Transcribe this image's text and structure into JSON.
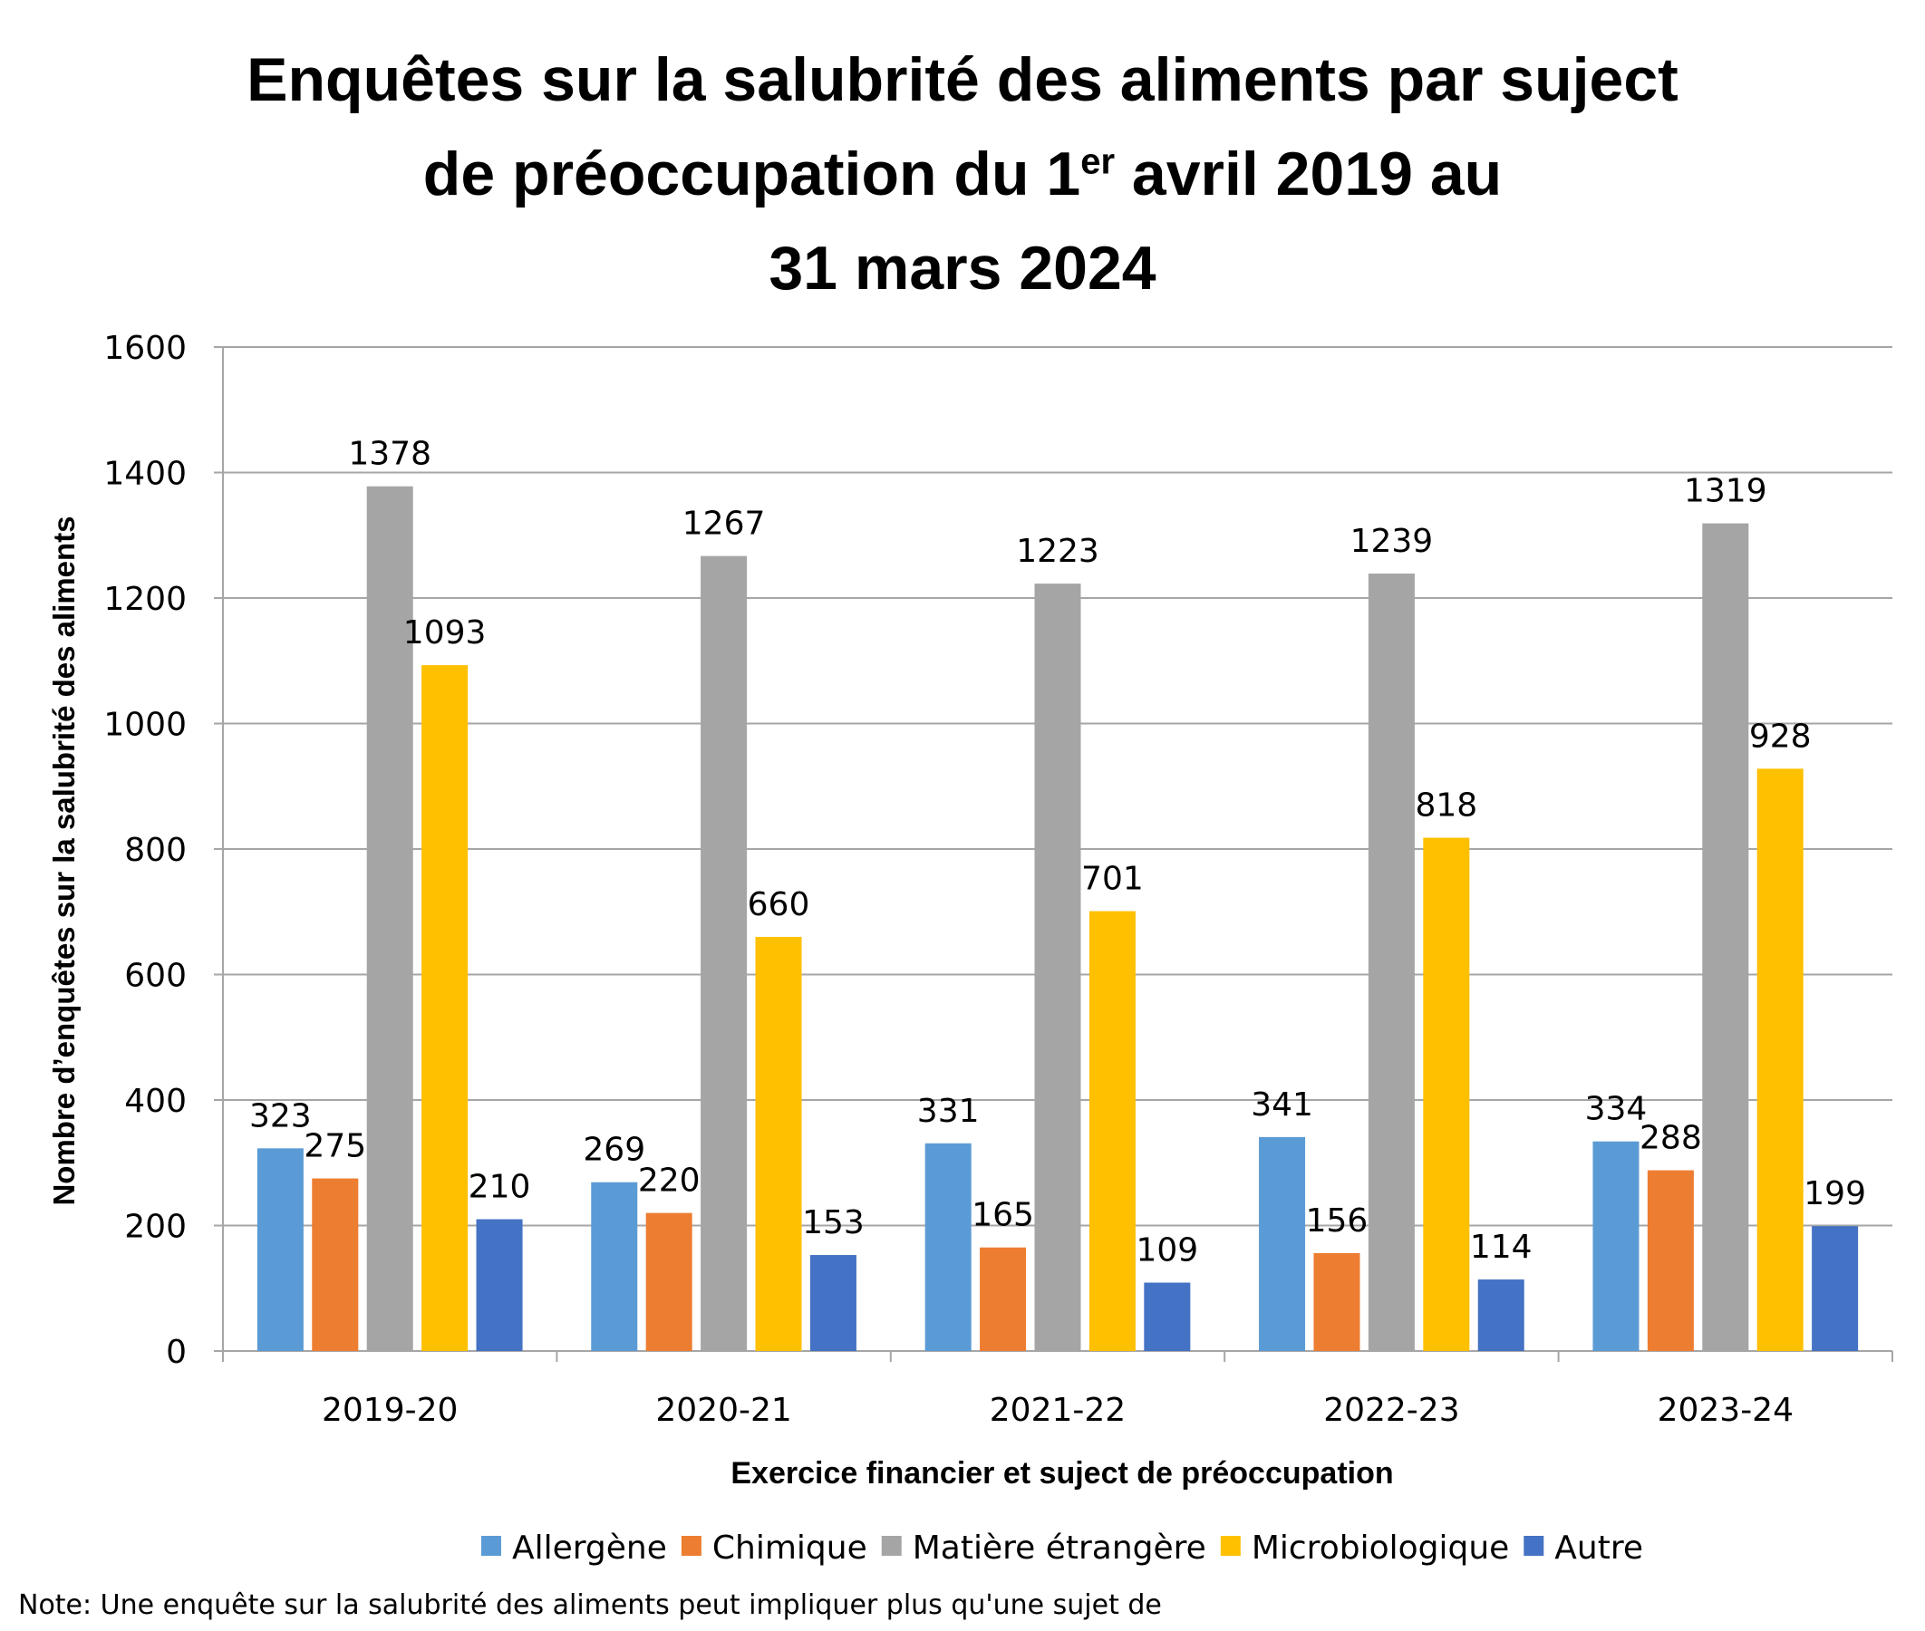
{
  "chart_data": {
    "type": "bar",
    "title": {
      "line1": "Enquêtes sur la salubrité des aliments par suject",
      "line2_before": "de préoccupation du 1",
      "line2_sup": "er",
      "line2_after": " avril 2019 au",
      "line3": "31 mars 2024"
    },
    "categories": [
      "2019-20",
      "2020-21",
      "2021-22",
      "2022-23",
      "2023-24"
    ],
    "series": [
      {
        "name": "Allergène",
        "color": "#5B9BD5",
        "values": [
          323,
          269,
          331,
          341,
          334
        ]
      },
      {
        "name": "Chimique",
        "color": "#ED7D31",
        "values": [
          275,
          220,
          165,
          156,
          288
        ]
      },
      {
        "name": "Matière étrangère",
        "color": "#A5A5A5",
        "values": [
          1378,
          1267,
          1223,
          1239,
          1319
        ]
      },
      {
        "name": "Microbiologique",
        "color": "#FFC000",
        "values": [
          1093,
          660,
          701,
          818,
          928
        ]
      },
      {
        "name": "Autre",
        "color": "#4472C4",
        "values": [
          210,
          153,
          109,
          114,
          199
        ]
      }
    ],
    "xlabel": "Exercice financier et suject de préoccupation",
    "ylabel": "Nombre d’enquêtes sur la salubrité des aliments",
    "ylim": [
      0,
      1600
    ],
    "yticks": [
      0,
      200,
      400,
      600,
      800,
      1000,
      1200,
      1400,
      1600
    ],
    "grid": true,
    "legend_position": "bottom"
  },
  "note": "Note: Une enquête sur la salubrité des aliments peut impliquer plus qu'une sujet de"
}
